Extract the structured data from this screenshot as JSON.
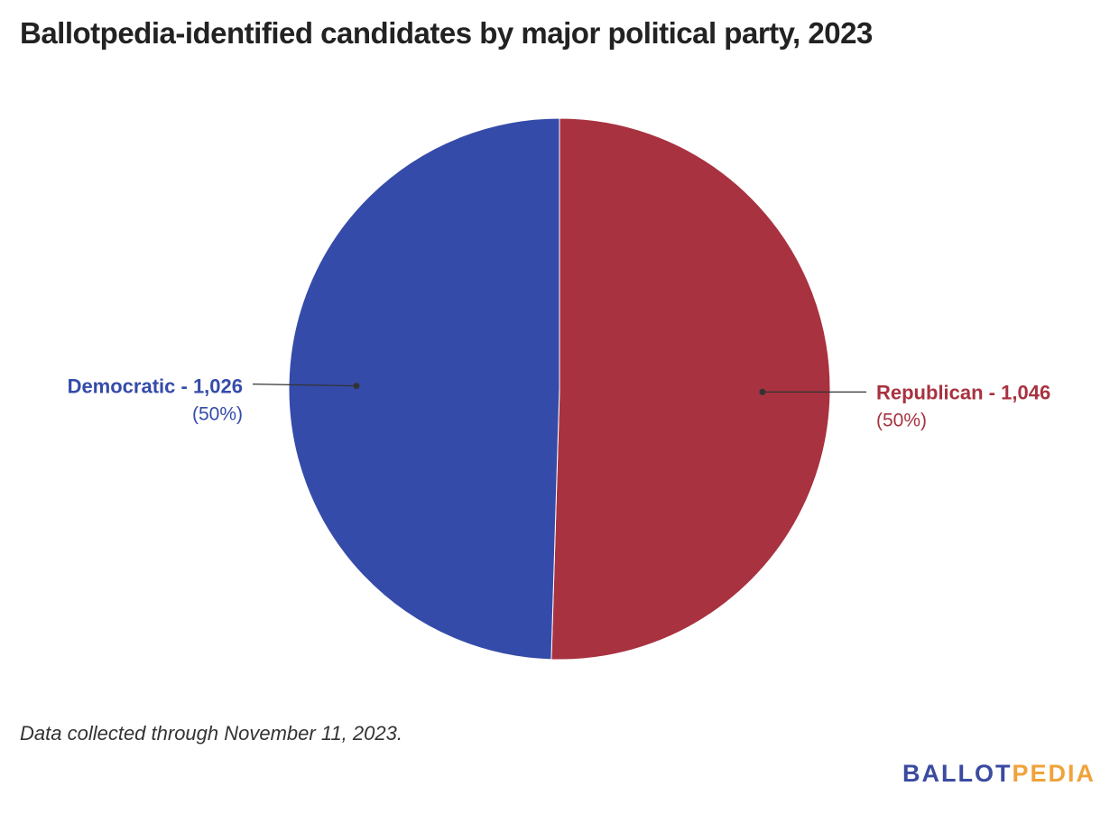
{
  "title": "Ballotpedia-identified candidates by major political party, 2023",
  "note": "Data collected through November 11, 2023.",
  "logo": {
    "part1": "BALLOT",
    "part2": "PEDIA",
    "color1": "#3a4ba0",
    "color2": "#f0a33a"
  },
  "chart_data": {
    "type": "pie",
    "title": "Ballotpedia-identified candidates by major political party, 2023",
    "slices": [
      {
        "name": "Republican",
        "value": 1046,
        "percent_label": "(50%)",
        "label": "Republican - 1,046",
        "color": "#a83240"
      },
      {
        "name": "Democratic",
        "value": 1026,
        "percent_label": "(50%)",
        "label": "Democratic - 1,026",
        "color": "#354ba9"
      }
    ],
    "start_angle": "top",
    "direction": "clockwise"
  }
}
